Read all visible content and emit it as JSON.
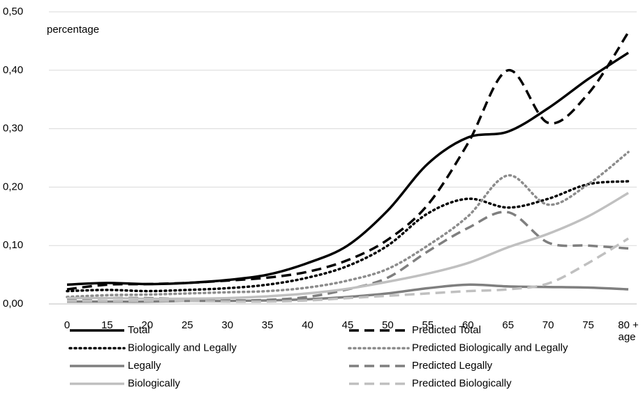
{
  "chart_data": {
    "type": "line",
    "y_label": "percentage",
    "x_label": "age",
    "categories": [
      "0",
      "15",
      "20",
      "25",
      "30",
      "35",
      "40",
      "45",
      "50",
      "55",
      "60",
      "65",
      "70",
      "75",
      "80 +"
    ],
    "ylim": [
      0,
      0.5
    ],
    "yticks": [
      {
        "value": 0,
        "label": "0,00"
      },
      {
        "value": 0.1,
        "label": "0,10"
      },
      {
        "value": 0.2,
        "label": "0,20"
      },
      {
        "value": 0.3,
        "label": "0,30"
      },
      {
        "value": 0.4,
        "label": "0,40"
      },
      {
        "value": 0.5,
        "label": "0,50"
      }
    ],
    "grid": true,
    "series": [
      {
        "name": "Total",
        "color": "#000000",
        "dash": "solid",
        "values": [
          0.033,
          0.036,
          0.034,
          0.036,
          0.041,
          0.05,
          0.07,
          0.1,
          0.16,
          0.24,
          0.285,
          0.295,
          0.335,
          0.385,
          0.43
        ]
      },
      {
        "name": "Predicted Total",
        "color": "#000000",
        "dash": "dash",
        "values": [
          0.025,
          0.033,
          0.034,
          0.036,
          0.04,
          0.045,
          0.055,
          0.075,
          0.11,
          0.17,
          0.275,
          0.4,
          0.31,
          0.36,
          0.465
        ]
      },
      {
        "name": "Biologically and Legally",
        "color": "#000000",
        "dash": "dot",
        "values": [
          0.022,
          0.024,
          0.022,
          0.024,
          0.027,
          0.033,
          0.045,
          0.065,
          0.1,
          0.155,
          0.18,
          0.165,
          0.18,
          0.205,
          0.21
        ]
      },
      {
        "name": "Predicted Biologically and Legally",
        "color": "#8c8c8c",
        "dash": "dot",
        "values": [
          0.012,
          0.015,
          0.016,
          0.018,
          0.02,
          0.022,
          0.028,
          0.04,
          0.06,
          0.1,
          0.15,
          0.22,
          0.17,
          0.205,
          0.26
        ]
      },
      {
        "name": "Legally",
        "color": "#7f7f7f",
        "dash": "solid",
        "values": [
          0.004,
          0.004,
          0.004,
          0.005,
          0.005,
          0.006,
          0.008,
          0.012,
          0.018,
          0.027,
          0.033,
          0.03,
          0.029,
          0.028,
          0.025
        ]
      },
      {
        "name": "Predicted Legally",
        "color": "#7f7f7f",
        "dash": "dash",
        "values": [
          0.008,
          0.01,
          0.01,
          0.008,
          0.006,
          0.007,
          0.012,
          0.025,
          0.045,
          0.09,
          0.13,
          0.157,
          0.105,
          0.1,
          0.095
        ]
      },
      {
        "name": "Biologically",
        "color": "#c0c0c0",
        "dash": "solid",
        "values": [
          0.01,
          0.01,
          0.009,
          0.009,
          0.01,
          0.013,
          0.018,
          0.026,
          0.038,
          0.052,
          0.07,
          0.097,
          0.12,
          0.15,
          0.19
        ]
      },
      {
        "name": "Predicted Biologically",
        "color": "#c0c0c0",
        "dash": "dash",
        "values": [
          0.005,
          0.005,
          0.005,
          0.005,
          0.004,
          0.004,
          0.006,
          0.01,
          0.014,
          0.018,
          0.022,
          0.025,
          0.035,
          0.07,
          0.112
        ]
      }
    ]
  }
}
